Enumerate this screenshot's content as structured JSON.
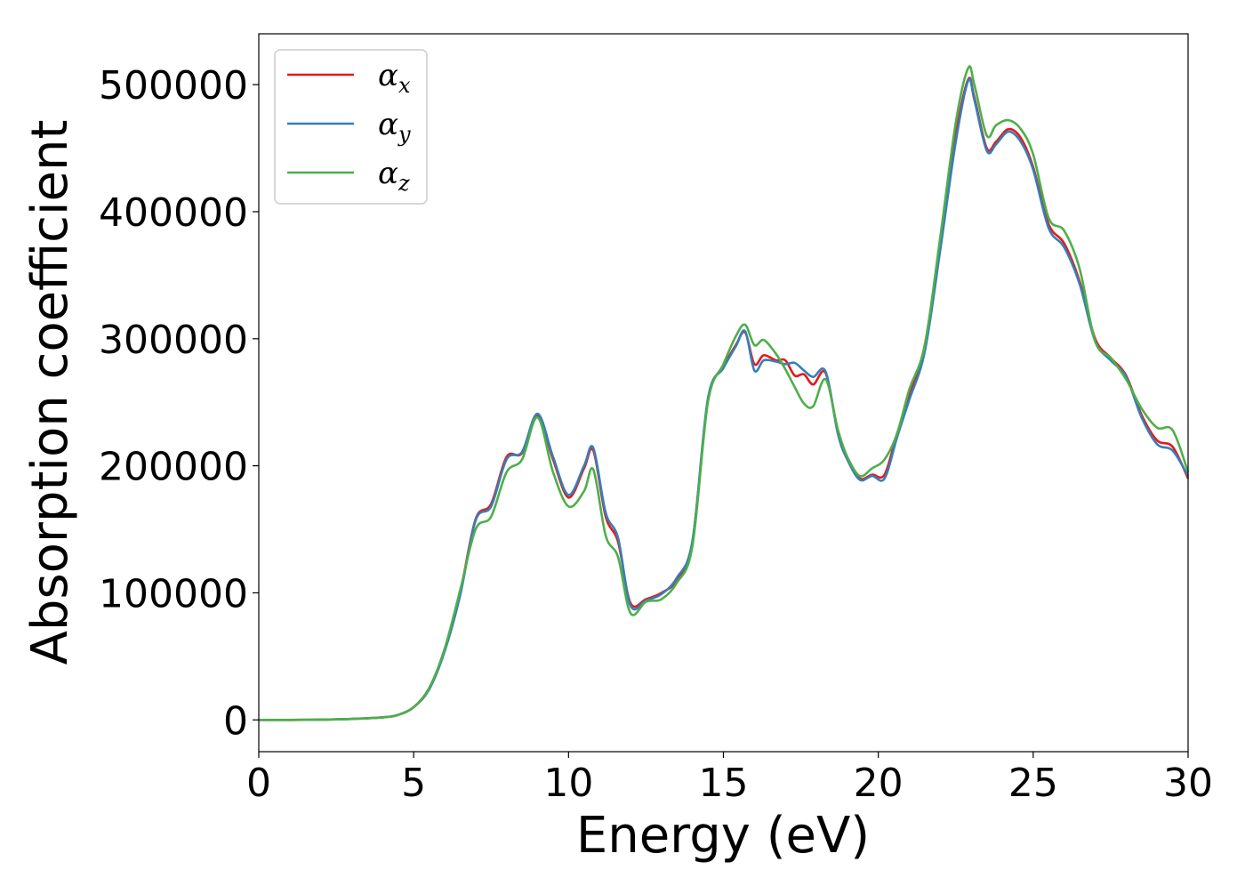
{
  "chart_data": {
    "type": "line",
    "title": "",
    "xlabel": "Energy (eV)",
    "ylabel": "Absorption coefficient",
    "xlim": [
      0,
      30
    ],
    "ylim": [
      -25000,
      540000
    ],
    "xticks": [
      0,
      5,
      10,
      15,
      20,
      25,
      30
    ],
    "xtick_labels": [
      "0",
      "5",
      "10",
      "15",
      "20",
      "25",
      "30"
    ],
    "yticks": [
      0,
      100000,
      200000,
      300000,
      400000,
      500000
    ],
    "ytick_labels": [
      "0",
      "100000",
      "200000",
      "300000",
      "400000",
      "500000"
    ],
    "grid": false,
    "legend_position": "top-left",
    "x": [
      0,
      1,
      2,
      3,
      4,
      4.5,
      5,
      5.5,
      6,
      6.5,
      7,
      7.5,
      8,
      8.5,
      9,
      9.5,
      10,
      10.5,
      10.8,
      11.2,
      11.6,
      12,
      12.5,
      13,
      13.5,
      14,
      14.5,
      15,
      15.4,
      15.7,
      16,
      16.3,
      16.7,
      17,
      17.3,
      17.6,
      17.9,
      18.3,
      18.7,
      19,
      19.4,
      19.8,
      20.2,
      20.6,
      21,
      21.5,
      22,
      22.5,
      22.9,
      23.1,
      23.5,
      23.8,
      24.2,
      24.6,
      25,
      25.5,
      26,
      26.5,
      27,
      27.5,
      28,
      28.5,
      29,
      29.5,
      30
    ],
    "series": [
      {
        "name": "α_x",
        "color": "#e41a1c",
        "values": [
          0,
          0,
          200,
          800,
          2000,
          4000,
          10000,
          25000,
          55000,
          100000,
          158000,
          170000,
          207000,
          210000,
          240000,
          205000,
          175000,
          198000,
          212000,
          160000,
          140000,
          92000,
          95000,
          100000,
          110000,
          140000,
          252000,
          278000,
          295000,
          305000,
          280000,
          287000,
          283000,
          283000,
          271000,
          272000,
          264000,
          273000,
          225000,
          205000,
          190000,
          193000,
          193000,
          225000,
          255000,
          295000,
          375000,
          460000,
          504000,
          490000,
          450000,
          455000,
          465000,
          458000,
          435000,
          390000,
          375000,
          345000,
          300000,
          285000,
          271000,
          240000,
          220000,
          215000,
          190000
        ]
      },
      {
        "name": "α_y",
        "color": "#377eb8",
        "values": [
          0,
          0,
          200,
          800,
          2000,
          4000,
          10000,
          24000,
          54000,
          98000,
          157000,
          168000,
          205000,
          211000,
          241000,
          207000,
          177000,
          200000,
          214000,
          163000,
          143000,
          90000,
          94000,
          99000,
          112000,
          141000,
          253000,
          277000,
          294000,
          306000,
          275000,
          283000,
          282000,
          280000,
          281000,
          275000,
          270000,
          274000,
          225000,
          205000,
          189000,
          192000,
          190000,
          222000,
          252000,
          290000,
          370000,
          455000,
          503000,
          488000,
          448000,
          453000,
          463000,
          455000,
          433000,
          387000,
          372000,
          343000,
          298000,
          283000,
          270000,
          238000,
          217000,
          212000,
          192000
        ]
      },
      {
        "name": "α_z",
        "color": "#4daf4a",
        "values": [
          0,
          0,
          200,
          800,
          2000,
          4000,
          10000,
          25000,
          56000,
          102000,
          150000,
          160000,
          195000,
          205000,
          238000,
          195000,
          168000,
          180000,
          197000,
          145000,
          128000,
          84000,
          93000,
          95000,
          108000,
          137000,
          250000,
          280000,
          302000,
          311000,
          295000,
          299000,
          288000,
          276000,
          262000,
          249000,
          247000,
          268000,
          228000,
          207000,
          192000,
          198000,
          205000,
          225000,
          260000,
          295000,
          380000,
          470000,
          513000,
          500000,
          460000,
          468000,
          472000,
          465000,
          445000,
          395000,
          385000,
          355000,
          298000,
          285000,
          268000,
          245000,
          230000,
          228000,
          195000
        ]
      }
    ]
  }
}
